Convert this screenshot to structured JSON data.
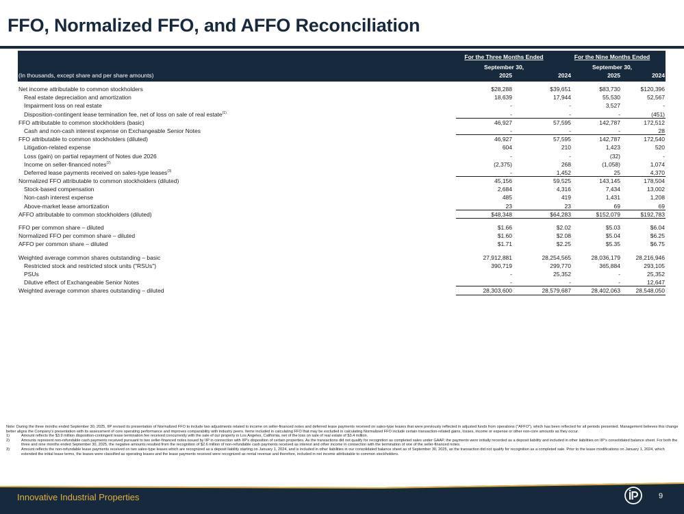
{
  "page_title": "FFO, Normalized FFO, and AFFO Reconciliation",
  "table": {
    "group1": {
      "line1": "For the Three Months Ended",
      "line2": "September 30,"
    },
    "group2": {
      "line1": "For the Nine Months Ended",
      "line2": "September 30,"
    },
    "caption": "(In thousands, except share and per share amounts)",
    "years": [
      "2025",
      "2024",
      "2025",
      "2024"
    ],
    "rows": [
      {
        "label": "Net income attributable to common stockholders",
        "sup": "",
        "values": [
          "$28,288",
          "$39,651",
          "$83,730",
          "$120,396"
        ]
      },
      {
        "label": "Real estate depreciation and amortization",
        "sup": "",
        "values": [
          "18,639",
          "17,944",
          "55,530",
          "52,567"
        ]
      },
      {
        "label": "Impairment loss on real estate",
        "sup": "",
        "values": [
          "-",
          "-",
          "3,527",
          "-"
        ]
      },
      {
        "label": "Disposition-contingent lease termination fee, net of loss on sale of real estate",
        "sup": "(1)",
        "values": [
          "-",
          "-",
          "-",
          "(451)"
        ]
      },
      {
        "label": "FFO attributable to common stockholders (basic)",
        "sup": "",
        "values": [
          "46,927",
          "57,595",
          "142,787",
          "172,512"
        ]
      },
      {
        "label": "Cash and non-cash interest expense on Exchangeable Senior Notes",
        "sup": "",
        "values": [
          "-",
          "-",
          "-",
          "28"
        ]
      },
      {
        "label": "FFO attributable to common stockholders (diluted)",
        "sup": "",
        "values": [
          "46,927",
          "57,595",
          "142,787",
          "172,540"
        ]
      },
      {
        "label": "Litigation-related expense",
        "sup": "",
        "values": [
          "604",
          "210",
          "1,423",
          "520"
        ]
      },
      {
        "label": "Loss (gain) on partial repayment of Notes due 2026",
        "sup": "",
        "values": [
          "-",
          "-",
          "(32)",
          "-"
        ]
      },
      {
        "label": "Income on seller-financed notes",
        "sup": "(2)",
        "values": [
          "(2,375)",
          "268",
          "(1,058)",
          "1,074"
        ]
      },
      {
        "label": "Deferred lease payments received on sales-type leases",
        "sup": "(3)",
        "values": [
          "-",
          "1,452",
          "25",
          "4,370"
        ]
      },
      {
        "label": "Normalized FFO attributable to common stockholders (diluted)",
        "sup": "",
        "values": [
          "45,156",
          "59,525",
          "143,145",
          "178,504"
        ]
      },
      {
        "label": "Stock-based compensation",
        "sup": "",
        "values": [
          "2,684",
          "4,316",
          "7,434",
          "13,002"
        ]
      },
      {
        "label": "Non-cash interest expense",
        "sup": "",
        "values": [
          "485",
          "419",
          "1,431",
          "1,208"
        ]
      },
      {
        "label": "Above-market lease amortization",
        "sup": "",
        "values": [
          "23",
          "23",
          "69",
          "69"
        ]
      },
      {
        "label": "AFFO attributable to common stockholders (diluted)",
        "sup": "",
        "values": [
          "$48,348",
          "$64,283",
          "$152,079",
          "$192,783"
        ]
      },
      {
        "label": "FFO per common share – diluted",
        "sup": "",
        "values": [
          "$1.66",
          "$2.02",
          "$5.03",
          "$6.04"
        ]
      },
      {
        "label": "Normalized FFO per common share – diluted",
        "sup": "",
        "values": [
          "$1.60",
          "$2.08",
          "$5.04",
          "$6.25"
        ]
      },
      {
        "label": "AFFO per common share – diluted",
        "sup": "",
        "values": [
          "$1.71",
          "$2.25",
          "$5.35",
          "$6.75"
        ]
      },
      {
        "label": "Weighted average common shares outstanding – basic",
        "sup": "",
        "values": [
          "27,912,881",
          "28,254,565",
          "28,036,179",
          "28,216,946"
        ]
      },
      {
        "label": "Restricted stock and restricted stock units (\"RSUs\")",
        "sup": "",
        "values": [
          "390,719",
          "299,770",
          "365,884",
          "293,105"
        ]
      },
      {
        "label": "PSUs",
        "sup": "",
        "values": [
          "-",
          "25,352",
          "-",
          "25,352"
        ]
      },
      {
        "label": "Dilutive effect of Exchangeable Senior Notes",
        "sup": "",
        "values": [
          "-",
          "-",
          "-",
          "12,647"
        ]
      },
      {
        "label": "Weighted average common shares outstanding – diluted",
        "sup": "",
        "values": [
          "28,303,600",
          "28,579,687",
          "28,402,063",
          "28,548,050"
        ]
      }
    ]
  },
  "notes": {
    "main": "Note: During the three months ended September 30, 2025, IIP revised its presentation of Normalized FFO to include two adjustments related to income on seller-financed notes and deferred lease payments received on sales-type leases that were previously reflected in adjusted funds from operations (\"AFFO\"), which has been reflected for all periods presented. Management believes this change better aligns the Company's presentation with its assessment of core operating performance and improves comparability with industry peers. Items included in calculating FFO that may be excluded in calculating Normalized FFO include certain transaction-related gains, losses, income or expense or other non-core amounts as they occur.",
    "footnotes": [
      {
        "num": "1)",
        "text": "Amount reflects the $3.9 million disposition-contingent lease termination fee received concurrently with the sale of our property in Los Angeles, California, net of the loss on sale of real estate of $3.4 million."
      },
      {
        "num": "2)",
        "text": "Amounts represent non-refundable cash payments received pursuant to two seller-financed notes issued by IIP in connection with IIP's disposition of certain properties. As the transactions did not qualify for recognition as completed sales under GAAP, the payments were initially recorded as a deposit liability and included in other liabilities on IIP's consolidated balance sheet. For both the three and nine months ended September 30, 2025, the negative amounts resulted from the recognition of $2.6 million of non-refundable cash payments received as interest and other income in connection with the termination of one of the seller-financed notes."
      },
      {
        "num": "3)",
        "text": "Amount reflects the non-refundable lease payments received on two sales-type leases which are recognized as a deposit liability starting on January 1, 2024, and is included in other liabilities in our consolidated balance sheet as of September 30, 2025, as the transaction did not qualify for recognition as a completed sale. Prior to the lease modifications on January 1, 2024, which extended the initial lease terms, the leases were classified as operating leases and the lease payments received were recognized as rental revenue and therefore, included in net income attributable to common stockholders."
      }
    ]
  },
  "footer": {
    "company": "Innovative Industrial Properties",
    "page_number": "9",
    "logo_text": "iP"
  },
  "colors": {
    "navy": "#17293d",
    "gold": "#e2b13c"
  }
}
